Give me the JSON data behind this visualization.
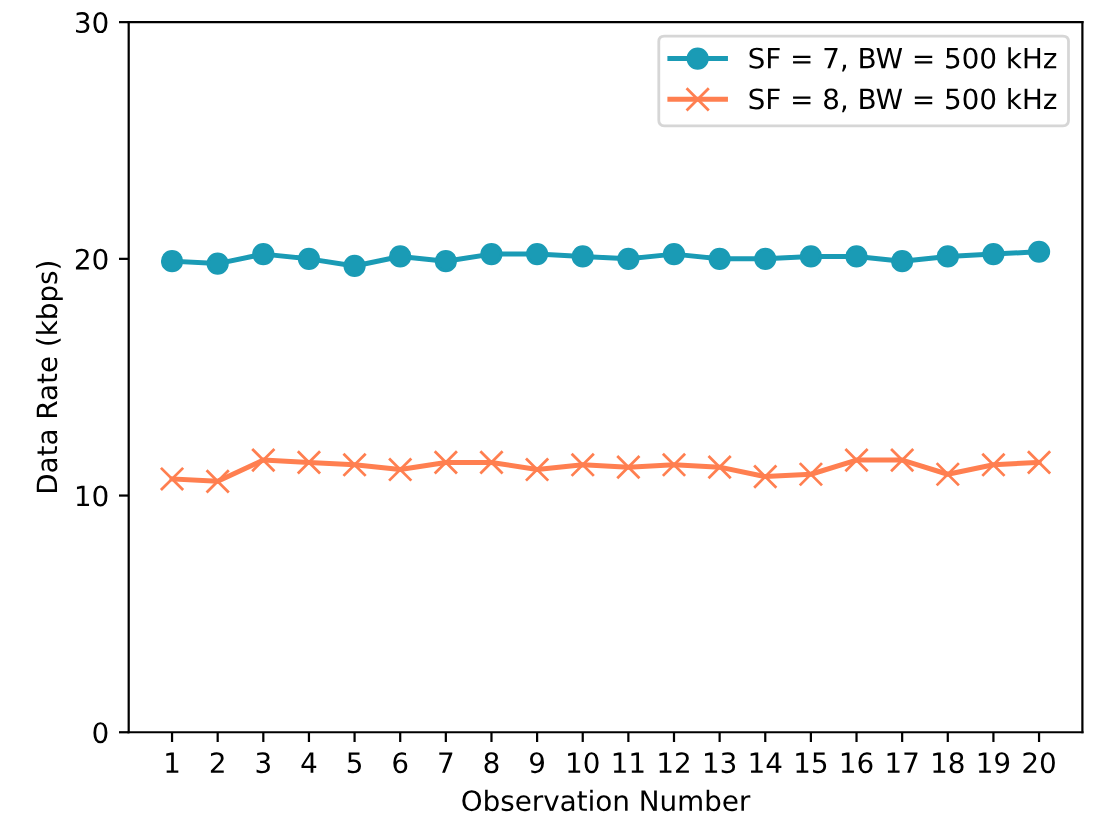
{
  "chart_data": {
    "type": "line",
    "xlabel": "Observation Number",
    "ylabel": "Data Rate (kbps)",
    "x": [
      1,
      2,
      3,
      4,
      5,
      6,
      7,
      8,
      9,
      10,
      11,
      12,
      13,
      14,
      15,
      16,
      17,
      18,
      19,
      20
    ],
    "xlim": [
      0.05,
      20.95
    ],
    "xticks": [
      1,
      2,
      3,
      4,
      5,
      6,
      7,
      8,
      9,
      10,
      11,
      12,
      13,
      14,
      15,
      16,
      17,
      18,
      19,
      20
    ],
    "ylim": [
      0,
      30
    ],
    "yticks": [
      0,
      10,
      20,
      30
    ],
    "grid": false,
    "legend": "top right",
    "series": [
      {
        "name": "SF = 7, BW = 500 kHz",
        "color": "#1a9bb5",
        "marker": "circle",
        "values": [
          19.9,
          19.8,
          20.2,
          20.0,
          19.7,
          20.1,
          19.9,
          20.2,
          20.2,
          20.1,
          20.0,
          20.2,
          20.0,
          20.0,
          20.1,
          20.1,
          19.9,
          20.1,
          20.2,
          20.3
        ]
      },
      {
        "name": "SF = 8, BW = 500 kHz",
        "color": "#ff7f50",
        "marker": "cross",
        "values": [
          10.7,
          10.6,
          11.5,
          11.4,
          11.3,
          11.1,
          11.4,
          11.4,
          11.1,
          11.3,
          11.2,
          11.3,
          11.2,
          10.8,
          10.9,
          11.5,
          11.5,
          10.9,
          11.3,
          11.4
        ]
      }
    ]
  }
}
